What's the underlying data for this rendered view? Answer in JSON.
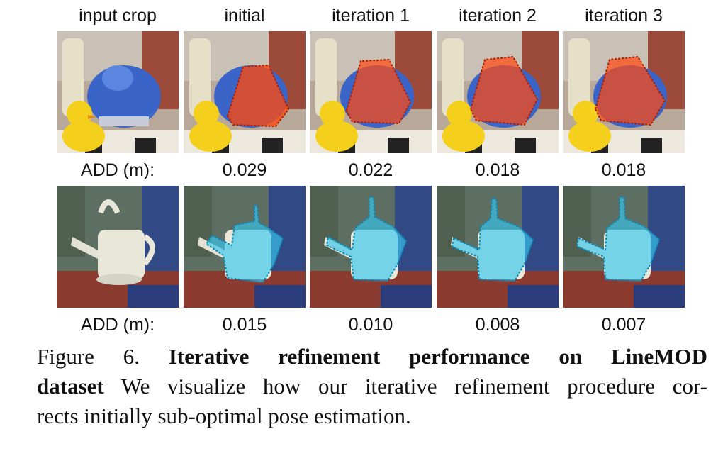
{
  "figure": {
    "column_headers": [
      "input crop",
      "initial",
      "iteration 1",
      "iteration 2",
      "iteration 3"
    ],
    "rows": [
      {
        "object": "duck / blue can scene",
        "add_label": "ADD (m):",
        "add_values": [
          "0.029",
          "0.022",
          "0.018",
          "0.018"
        ],
        "overlay_color": "#ff4a10"
      },
      {
        "object": "watering can scene",
        "add_label": "ADD (m):",
        "add_values": [
          "0.015",
          "0.010",
          "0.008",
          "0.007"
        ],
        "overlay_color": "#38c8f0"
      }
    ],
    "caption": {
      "prefix": "Figure 6.",
      "bold_title_line1": "Iterative refinement performance on LineMOD",
      "bold_title_line2": "dataset",
      "text_line2": " We visualize how our iterative refinement procedure cor-",
      "text_line3": "rects initially sub-optimal pose estimation."
    }
  }
}
